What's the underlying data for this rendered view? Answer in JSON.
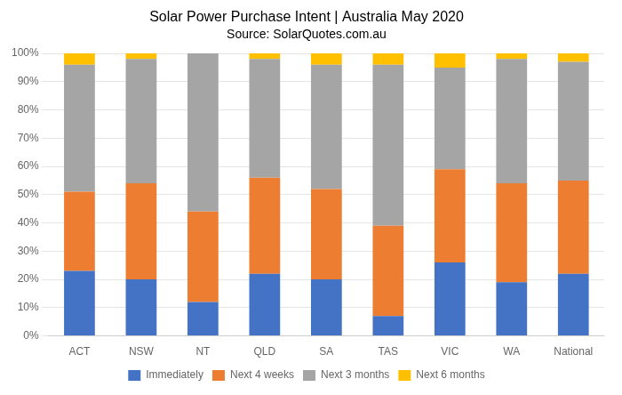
{
  "chart_data": {
    "type": "bar",
    "title": "Solar Power Purchase Intent | Australia May 2020",
    "subtitle": "Source: SolarQuotes.com.au",
    "categories": [
      "ACT",
      "NSW",
      "NT",
      "QLD",
      "SA",
      "TAS",
      "VIC",
      "WA",
      "National"
    ],
    "series": [
      {
        "name": "Immediately",
        "color": "#4472C4",
        "values": [
          23,
          20,
          12,
          22,
          20,
          7,
          26,
          19,
          22
        ]
      },
      {
        "name": "Next 4 weeks",
        "color": "#ED7D31",
        "values": [
          28,
          34,
          32,
          34,
          32,
          32,
          33,
          35,
          33
        ]
      },
      {
        "name": "Next 3 months",
        "color": "#A5A5A5",
        "values": [
          45,
          44,
          56,
          42,
          44,
          57,
          36,
          44,
          42
        ]
      },
      {
        "name": "Next 6 months",
        "color": "#FFC000",
        "values": [
          4,
          2,
          0,
          2,
          4,
          4,
          5,
          2,
          3
        ]
      }
    ],
    "ylim": [
      0,
      100
    ],
    "yticks": [
      {
        "value": 0,
        "label": "0%"
      },
      {
        "value": 10,
        "label": "10%"
      },
      {
        "value": 20,
        "label": "20%"
      },
      {
        "value": 30,
        "label": "30%"
      },
      {
        "value": 40,
        "label": "40%"
      },
      {
        "value": 50,
        "label": "50%"
      },
      {
        "value": 60,
        "label": "60%"
      },
      {
        "value": 70,
        "label": "70%"
      },
      {
        "value": 80,
        "label": "80%"
      },
      {
        "value": 90,
        "label": "90%"
      },
      {
        "value": 100,
        "label": "100%"
      }
    ],
    "grid": true,
    "stacked": true,
    "legend": "bottom"
  }
}
